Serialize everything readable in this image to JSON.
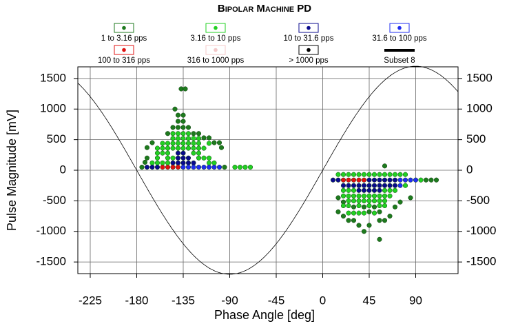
{
  "chart_data": {
    "type": "scatter",
    "title": "Bipolar Machine PD",
    "x_label": "Phase Angle [deg]",
    "y_label": "Pulse Magnitude [mV]",
    "xlim": [
      -237,
      131
    ],
    "ylim": [
      -1690,
      1690
    ],
    "xticks": [
      -225,
      -180,
      -135,
      -90,
      -45,
      0,
      45,
      90
    ],
    "yticks": [
      1500,
      1000,
      500,
      0,
      -500,
      -1000,
      -1500
    ],
    "grid": true,
    "reference_curve": {
      "amplitude": 1700
    },
    "series": [
      {
        "name": "1 to 3.16 pps",
        "color": "#1e7a1e",
        "x": [
          -175,
          -95,
          -143,
          -140,
          -135,
          -137,
          -133,
          -140,
          -135,
          -145,
          -140,
          -135,
          -130,
          -150,
          -125,
          -120,
          -115,
          -110,
          -105,
          -100,
          -98,
          -165,
          -170,
          -172,
          -170,
          40,
          45,
          35,
          30,
          25,
          55,
          60,
          20,
          65,
          70,
          75,
          85,
          55,
          60,
          30,
          40,
          50,
          45,
          55,
          15,
          20,
          15,
          100,
          105,
          110
        ],
        "y": [
          50,
          50,
          1000,
          900,
          900,
          1330,
          1330,
          800,
          800,
          700,
          700,
          700,
          700,
          600,
          600,
          600,
          530,
          530,
          450,
          450,
          370,
          450,
          370,
          130,
          200,
          -1000,
          -900,
          -900,
          -820,
          -820,
          -820,
          -820,
          -750,
          -750,
          -600,
          -520,
          -450,
          -1130,
          70,
          -600,
          -600,
          -600,
          -680,
          -680,
          -680,
          -520,
          -450,
          -160,
          -160,
          -160
        ]
      },
      {
        "name": "3.16 to 10 pps",
        "color": "#22d022",
        "x": [
          -85,
          -80,
          -75,
          -70,
          -165,
          -160,
          -155,
          -150,
          -110,
          -105,
          -160,
          -150,
          -145,
          -120,
          -115,
          -110,
          -160,
          -155,
          -150,
          -125,
          -120,
          -160,
          -155,
          -150,
          -145,
          -140,
          -135,
          -130,
          -125,
          -120,
          -115,
          -155,
          -150,
          -145,
          -140,
          -135,
          -130,
          -125,
          -120,
          -110,
          -145,
          -140,
          -135,
          -130,
          -125,
          -120,
          -145,
          -140,
          -135,
          -130,
          15,
          20,
          25,
          30,
          35,
          40,
          45,
          50,
          55,
          60,
          65,
          70,
          75,
          80,
          80,
          20,
          25,
          30,
          60,
          65,
          70,
          20,
          25,
          30,
          35,
          40,
          45,
          50,
          55,
          60,
          65,
          25,
          30,
          35,
          40,
          45,
          50,
          55,
          60,
          20,
          25,
          35,
          45,
          55,
          60,
          25,
          30,
          35,
          40,
          50,
          95
        ],
        "y": [
          50,
          50,
          50,
          50,
          120,
          120,
          120,
          120,
          120,
          120,
          200,
          200,
          200,
          200,
          200,
          200,
          280,
          280,
          280,
          280,
          280,
          360,
          360,
          360,
          360,
          360,
          360,
          360,
          360,
          360,
          360,
          440,
          440,
          440,
          440,
          440,
          440,
          440,
          440,
          440,
          520,
          520,
          520,
          520,
          520,
          520,
          600,
          600,
          600,
          600,
          -70,
          -70,
          -70,
          -70,
          -70,
          -70,
          -70,
          -70,
          -70,
          -70,
          -70,
          -70,
          -70,
          -70,
          -250,
          -330,
          -330,
          -330,
          -330,
          -330,
          -330,
          -420,
          -420,
          -420,
          -420,
          -420,
          -420,
          -420,
          -420,
          -420,
          -420,
          -500,
          -500,
          -500,
          -500,
          -500,
          -500,
          -500,
          -500,
          -580,
          -580,
          -580,
          -580,
          -580,
          -580,
          -700,
          -700,
          -700,
          -700,
          -700,
          -160
        ]
      },
      {
        "name": "10 to 31.6 pps",
        "color": "#0a0a8c",
        "x": [
          -170,
          -165,
          -160,
          -145,
          -140,
          -135,
          -130,
          -125,
          -140,
          -135,
          -130,
          -140,
          -135,
          10,
          15,
          45,
          50,
          55,
          60,
          65,
          70,
          20,
          25,
          30,
          35,
          40,
          45,
          50,
          55,
          60,
          65,
          70,
          35,
          40,
          45,
          50,
          55
        ],
        "y": [
          50,
          50,
          50,
          120,
          120,
          120,
          120,
          120,
          200,
          200,
          200,
          280,
          280,
          -160,
          -160,
          -160,
          -160,
          -160,
          -160,
          -160,
          -160,
          -250,
          -250,
          -250,
          -250,
          -250,
          -250,
          -250,
          -250,
          -250,
          -250,
          -250,
          -330,
          -330,
          -330,
          -330,
          -330
        ]
      },
      {
        "name": "31.6 to 100 pps",
        "color": "#1f2cf0",
        "x": [
          -135,
          -130,
          -125,
          -120,
          -115,
          -110,
          -105,
          -100,
          75,
          80,
          85,
          90,
          75
        ],
        "y": [
          50,
          50,
          50,
          50,
          50,
          50,
          50,
          50,
          -160,
          -160,
          -160,
          -160,
          -250
        ]
      },
      {
        "name": "100 to 316 pps",
        "color": "#e01010",
        "x": [
          -155,
          -150,
          -145,
          -140,
          20,
          25,
          30,
          35,
          40
        ],
        "y": [
          50,
          50,
          50,
          50,
          -160,
          -160,
          -160,
          -160,
          -160
        ]
      },
      {
        "name": "316 to 1000 pps",
        "color": "#f4c8c8",
        "x": [],
        "y": []
      },
      {
        "name": "> 1000 pps",
        "color": "#000000",
        "x": [],
        "y": []
      },
      {
        "name": "Subset 8",
        "color": "#000000",
        "legend_marker": "bar",
        "x": [],
        "y": []
      }
    ]
  }
}
